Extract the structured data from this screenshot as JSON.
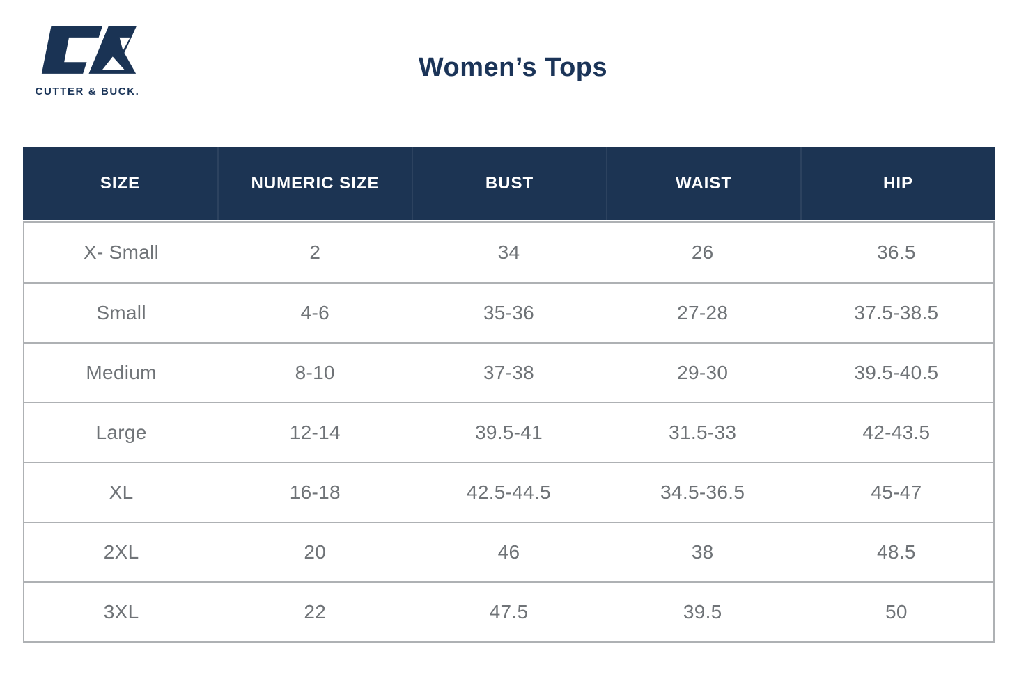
{
  "brand": {
    "logo_text": "CUTTER & BUCK.",
    "monogram": "cutter-buck-cb-monogram"
  },
  "page": {
    "title": "Women’s Tops"
  },
  "size_chart": {
    "columns": [
      "SIZE",
      "NUMERIC SIZE",
      "BUST",
      "WAIST",
      "HIP"
    ],
    "rows": [
      [
        "X- Small",
        "2",
        "34",
        "26",
        "36.5"
      ],
      [
        "Small",
        "4-6",
        "35-36",
        "27-28",
        "37.5-38.5"
      ],
      [
        "Medium",
        "8-10",
        "37-38",
        "29-30",
        "39.5-40.5"
      ],
      [
        "Large",
        "12-14",
        "39.5-41",
        "31.5-33",
        "42-43.5"
      ],
      [
        "XL",
        "16-18",
        "42.5-44.5",
        "34.5-36.5",
        "45-47"
      ],
      [
        "2XL",
        "20",
        "46",
        "38",
        "48.5"
      ],
      [
        "3XL",
        "22",
        "47.5",
        "39.5",
        "50"
      ]
    ]
  },
  "colors": {
    "navy": "#1c3453",
    "header_text": "#ffffff",
    "cell_text": "#6f7377",
    "border": "#aeb1b4",
    "background": "#ffffff"
  }
}
